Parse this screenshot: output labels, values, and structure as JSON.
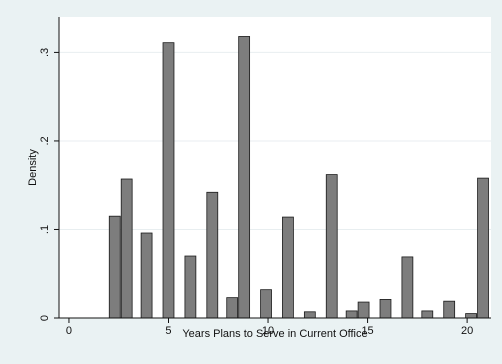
{
  "chart_data": {
    "type": "bar",
    "xlabel": "Years Plans to Serve in Current Office",
    "ylabel": "Density",
    "xlim": [
      -0.5,
      21.2
    ],
    "ylim": [
      0,
      0.34
    ],
    "xticks": [
      0,
      5,
      10,
      15,
      20
    ],
    "xtick_labels": [
      "0",
      "5",
      "10",
      "15",
      "20"
    ],
    "yticks": [
      0,
      0.1,
      0.2,
      0.3
    ],
    "ytick_labels": [
      "0",
      ".1",
      ".2",
      ".3"
    ],
    "grid": "horizontal",
    "bar_width": 0.55,
    "colors": {
      "bar_fill": "#7d7d7d",
      "bar_stroke": "#1a1a1a",
      "plot_bg": "#ffffff",
      "outer_bg": "#eaf2f3",
      "grid": "#e8eef0"
    },
    "bars": [
      {
        "x": 2.3,
        "y": 0.115
      },
      {
        "x": 2.9,
        "y": 0.157
      },
      {
        "x": 3.9,
        "y": 0.096
      },
      {
        "x": 5.0,
        "y": 0.311
      },
      {
        "x": 6.1,
        "y": 0.07
      },
      {
        "x": 7.2,
        "y": 0.142
      },
      {
        "x": 8.2,
        "y": 0.023
      },
      {
        "x": 8.8,
        "y": 0.318
      },
      {
        "x": 9.9,
        "y": 0.032
      },
      {
        "x": 11.0,
        "y": 0.114
      },
      {
        "x": 12.1,
        "y": 0.007
      },
      {
        "x": 13.2,
        "y": 0.162
      },
      {
        "x": 14.2,
        "y": 0.008
      },
      {
        "x": 14.8,
        "y": 0.018
      },
      {
        "x": 15.9,
        "y": 0.021
      },
      {
        "x": 17.0,
        "y": 0.069
      },
      {
        "x": 18.0,
        "y": 0.008
      },
      {
        "x": 19.1,
        "y": 0.019
      },
      {
        "x": 20.2,
        "y": 0.005
      },
      {
        "x": 20.8,
        "y": 0.158
      }
    ]
  }
}
